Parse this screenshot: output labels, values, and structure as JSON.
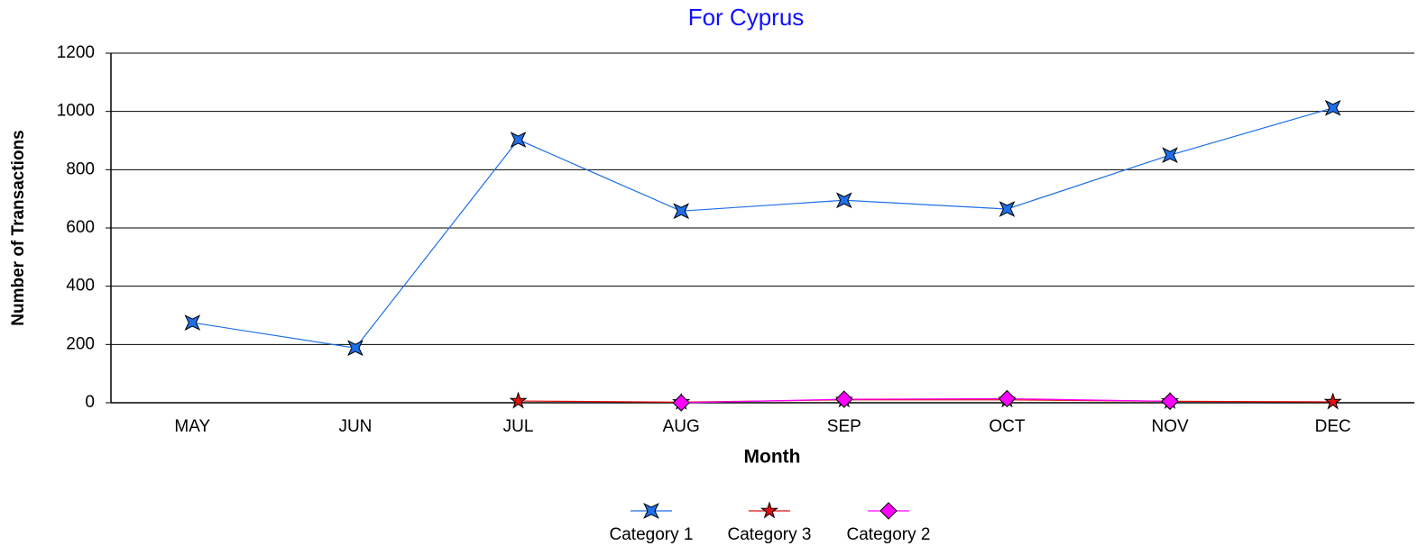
{
  "chart_data": {
    "type": "line",
    "title": "For Cyprus",
    "x_label": "Month",
    "y_label": "Number of Transactions",
    "categories": [
      "MAY",
      "JUN",
      "JUL",
      "AUG",
      "SEP",
      "OCT",
      "NOV",
      "DEC"
    ],
    "series": [
      {
        "name": "Category 1",
        "color": "#1e6fe8",
        "marker": "star4",
        "values": [
          275,
          188,
          903,
          658,
          695,
          665,
          850,
          1012
        ]
      },
      {
        "name": "Category 3",
        "color": "#e01010",
        "marker": "star5",
        "values": [
          null,
          null,
          6,
          2,
          10,
          10,
          5,
          3
        ]
      },
      {
        "name": "Category 2",
        "color": "#ff00ff",
        "marker": "diamond",
        "values": [
          null,
          null,
          null,
          0,
          12,
          14,
          5,
          null
        ]
      }
    ],
    "ylim": [
      0,
      1200
    ],
    "yticks": [
      0,
      200,
      400,
      600,
      800,
      1000,
      1200
    ],
    "grid": true,
    "legend": "bottom"
  }
}
